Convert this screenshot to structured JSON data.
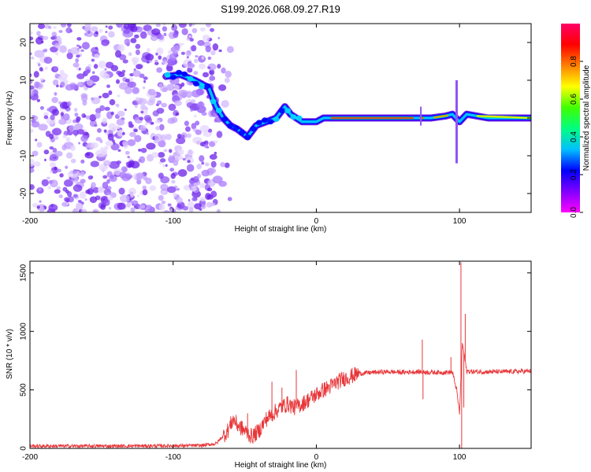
{
  "title": "S199.2026.068.09.27.R19",
  "chart_data": [
    {
      "type": "heatmap",
      "name": "spectrogram",
      "xlabel": "Height of straight line (km)",
      "ylabel": "Frequency (Hz)",
      "xlim": [
        -200,
        150
      ],
      "ylim": [
        -25,
        25
      ],
      "xticks": [
        -200,
        -100,
        0,
        100
      ],
      "xtick_labels": [
        "-200",
        "-100",
        "0",
        "100"
      ],
      "yticks": [
        -20,
        -10,
        0,
        10,
        20
      ],
      "ytick_labels": [
        "-20",
        "-10",
        "0",
        "10",
        "20"
      ],
      "colorbar": {
        "label": "Normalized spectral amplitude",
        "range": [
          0,
          1
        ],
        "ticks": [
          0.0,
          0.2,
          0.4,
          0.6,
          0.8
        ],
        "tick_labels": [
          "0.0",
          "0.2",
          "0.4",
          "0.6",
          "0.8"
        ],
        "colormap": [
          "#ff00ff",
          "#8000ff",
          "#0000ff",
          "#00c0ff",
          "#00ff80",
          "#40ff00",
          "#ffff00",
          "#ff8000",
          "#ff0000",
          "#ff0066"
        ]
      },
      "ridge_frequency_hz": [
        {
          "x": -105,
          "y": 11
        },
        {
          "x": -95,
          "y": 11.5
        },
        {
          "x": -85,
          "y": 10
        },
        {
          "x": -75,
          "y": 8
        },
        {
          "x": -70,
          "y": 3
        },
        {
          "x": -65,
          "y": 0
        },
        {
          "x": -60,
          "y": -2
        },
        {
          "x": -55,
          "y": -3
        },
        {
          "x": -48,
          "y": -5
        },
        {
          "x": -42,
          "y": -2
        },
        {
          "x": -35,
          "y": -1
        },
        {
          "x": -28,
          "y": 0
        },
        {
          "x": -22,
          "y": 3
        },
        {
          "x": -18,
          "y": 1
        },
        {
          "x": -10,
          "y": -1
        },
        {
          "x": 0,
          "y": -1
        },
        {
          "x": 5,
          "y": 0
        },
        {
          "x": 20,
          "y": 0
        },
        {
          "x": 50,
          "y": 0
        },
        {
          "x": 70,
          "y": 0
        },
        {
          "x": 72,
          "y": 0
        },
        {
          "x": 80,
          "y": 0
        },
        {
          "x": 90,
          "y": 0.5
        },
        {
          "x": 95,
          "y": 1
        },
        {
          "x": 100,
          "y": -1
        },
        {
          "x": 105,
          "y": 1
        },
        {
          "x": 120,
          "y": 0
        },
        {
          "x": 150,
          "y": 0
        }
      ]
    },
    {
      "type": "line",
      "name": "snr",
      "xlabel": "Height of straight line (km)",
      "ylabel": "SNR (10 * v/v)",
      "xlim": [
        -200,
        150
      ],
      "ylim": [
        0,
        1600
      ],
      "xticks": [
        -200,
        -100,
        0,
        100
      ],
      "xtick_labels": [
        "-200",
        "-100",
        "0",
        "100"
      ],
      "yticks": [
        0,
        500,
        1000,
        1500
      ],
      "ytick_labels": [
        "0",
        "500",
        "1000",
        "1500"
      ],
      "color": "#e8373a",
      "series": [
        {
          "x": -200,
          "y": 20
        },
        {
          "x": -150,
          "y": 20
        },
        {
          "x": -100,
          "y": 22
        },
        {
          "x": -80,
          "y": 25
        },
        {
          "x": -70,
          "y": 40
        },
        {
          "x": -62,
          "y": 150
        },
        {
          "x": -58,
          "y": 250
        },
        {
          "x": -55,
          "y": 200
        },
        {
          "x": -50,
          "y": 150
        },
        {
          "x": -45,
          "y": 100
        },
        {
          "x": -40,
          "y": 150
        },
        {
          "x": -35,
          "y": 250
        },
        {
          "x": -30,
          "y": 300
        },
        {
          "x": -25,
          "y": 350
        },
        {
          "x": -20,
          "y": 380
        },
        {
          "x": -15,
          "y": 350
        },
        {
          "x": -10,
          "y": 380
        },
        {
          "x": -5,
          "y": 420
        },
        {
          "x": 0,
          "y": 460
        },
        {
          "x": 5,
          "y": 500
        },
        {
          "x": 10,
          "y": 530
        },
        {
          "x": 15,
          "y": 570
        },
        {
          "x": 20,
          "y": 600
        },
        {
          "x": 25,
          "y": 620
        },
        {
          "x": 30,
          "y": 640
        },
        {
          "x": 40,
          "y": 650
        },
        {
          "x": 50,
          "y": 655
        },
        {
          "x": 60,
          "y": 650
        },
        {
          "x": 70,
          "y": 655
        },
        {
          "x": 80,
          "y": 650
        },
        {
          "x": 90,
          "y": 650
        },
        {
          "x": 95,
          "y": 650
        },
        {
          "x": 98,
          "y": 500
        },
        {
          "x": 100,
          "y": 300
        },
        {
          "x": 102,
          "y": 900
        },
        {
          "x": 105,
          "y": 660
        },
        {
          "x": 110,
          "y": 655
        },
        {
          "x": 130,
          "y": 655
        },
        {
          "x": 150,
          "y": 660
        }
      ],
      "spikes": [
        {
          "x": -56,
          "y": 250
        },
        {
          "x": -48,
          "y": 300
        },
        {
          "x": -31,
          "y": 570
        },
        {
          "x": -24,
          "y": 520
        },
        {
          "x": -14,
          "y": 670
        },
        {
          "x": 74,
          "y": 930
        },
        {
          "x": 74.5,
          "y": 420
        },
        {
          "x": 94,
          "y": 780
        },
        {
          "x": 101,
          "y": 1590
        },
        {
          "x": 101.5,
          "y": 0
        },
        {
          "x": 104,
          "y": 1150
        },
        {
          "x": 103,
          "y": 350
        }
      ],
      "noise_amplitude": 15
    }
  ]
}
